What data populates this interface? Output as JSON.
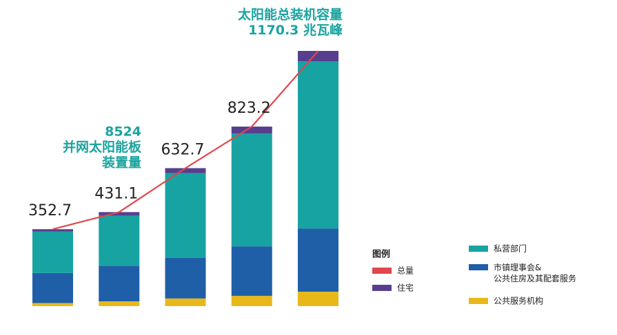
{
  "chart_data": {
    "type": "bar",
    "stacked": true,
    "categories": [
      null,
      null,
      null,
      null,
      null
    ],
    "series": [
      {
        "name": "公共服务机构",
        "color": "#e8b81a",
        "values": [
          14,
          22,
          35,
          47,
          66
        ]
      },
      {
        "name": "市镇理事会&公共住房及其配套服务",
        "color": "#1f5fa8",
        "values": [
          138,
          163,
          186,
          227,
          290
        ]
      },
      {
        "name": "私营部门",
        "color": "#18a3a3",
        "values": [
          190,
          230,
          389,
          517,
          766
        ]
      },
      {
        "name": "住宅",
        "color": "#573f8f",
        "values": [
          10.7,
          16.1,
          22.7,
          32.2,
          48.3
        ]
      },
      {
        "name": "总量",
        "type": "line",
        "color": "#e0474c",
        "values": [
          352.7,
          431.1,
          632.7,
          823.2,
          1170.3
        ]
      }
    ],
    "legend_title": "图例",
    "annotations": [
      {
        "lines": [
          "8524",
          "并网太阳能板",
          "装置量"
        ]
      },
      {
        "lines": [
          "太阳能总装机容量",
          "1170.3 兆瓦峰"
        ]
      }
    ]
  }
}
